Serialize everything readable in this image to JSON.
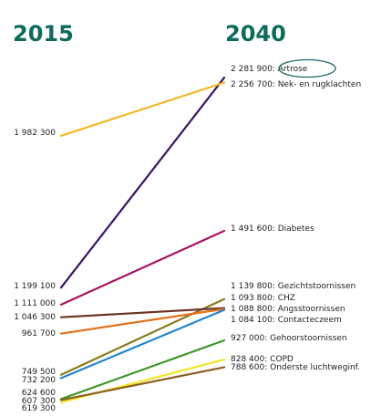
{
  "chart_data": {
    "type": "line",
    "x": [
      "2015",
      "2040"
    ],
    "year_color": "#0f6b5c",
    "highlight_color": "#1b6a60",
    "series": [
      {
        "name": "Artrose",
        "start_label": "1 199 100",
        "end_label": "2 281 900",
        "values": [
          1199100,
          2281900
        ],
        "color": "#3b1562",
        "highlight": true
      },
      {
        "name": "Nek- en rugklachten",
        "start_label": "1 982 300",
        "end_label": "2 256 700",
        "values": [
          1982300,
          2256700
        ],
        "color": "#f3b824"
      },
      {
        "name": "Diabetes",
        "start_label": "1 111 000",
        "end_label": "1 491 600",
        "values": [
          1111000,
          1491600
        ],
        "color": "#a8125e"
      },
      {
        "name": "Gezichtstoornissen",
        "start_label": "749 500",
        "end_label": "1 139 800",
        "values": [
          749500,
          1139800
        ],
        "color": "#8a7a1c"
      },
      {
        "name": "CHZ",
        "start_label": "1 046 300",
        "end_label": "1 093 800",
        "values": [
          1046300,
          1093800
        ],
        "color": "#6b3522"
      },
      {
        "name": "Angsstoornissen",
        "start_label": "961 700",
        "end_label": "1 088 800",
        "values": [
          961700,
          1088800
        ],
        "color": "#e2731e"
      },
      {
        "name": "Contacteczeem",
        "start_label": "732 200",
        "end_label": "1 084 100",
        "values": [
          732200,
          1084100
        ],
        "color": "#2585cc"
      },
      {
        "name": "Gehoorstoornissen",
        "start_label": "624 600",
        "end_label": "927 000",
        "values": [
          624600,
          927000
        ],
        "color": "#3f9628"
      },
      {
        "name": "COPD",
        "start_label": "607 300",
        "end_label": "828 400",
        "values": [
          607300,
          828400
        ],
        "color": "#f2e62e"
      },
      {
        "name": "Onderste luchtweginf.",
        "start_label": "619 300",
        "end_label": "788 600",
        "values": [
          619300,
          788600
        ],
        "color": "#8c5f22"
      }
    ]
  }
}
